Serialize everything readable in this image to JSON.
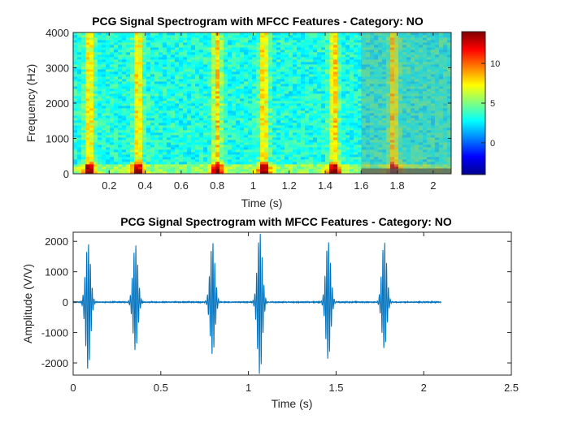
{
  "chart_data": [
    {
      "type": "heatmap",
      "title": "PCG Signal Spectrogram with MFCC Features - Category: NO",
      "xlabel": "Time (s)",
      "ylabel": "Frequency (Hz)",
      "xlim": [
        0,
        2.1
      ],
      "ylim": [
        0,
        4000
      ],
      "xticks": [
        0.2,
        0.4,
        0.6,
        0.8,
        1,
        1.2,
        1.4,
        1.6,
        1.8,
        2
      ],
      "xtick_labels": [
        "0.2",
        "0.4",
        "0.6",
        "0.8",
        "1",
        "1.2",
        "1.4",
        "1.6",
        "1.8",
        "2"
      ],
      "yticks": [
        0,
        1000,
        2000,
        3000,
        4000
      ],
      "ytick_labels": [
        "0",
        "1000",
        "2000",
        "3000",
        "4000"
      ],
      "colormap": "jet",
      "clim": [
        -4,
        14
      ],
      "colorbar_ticks": [
        0,
        5,
        10
      ],
      "colorbar_tick_labels": [
        "0",
        "5",
        "10"
      ],
      "beat_times": [
        0.09,
        0.36,
        0.8,
        1.06,
        1.45,
        1.78
      ],
      "overlay": {
        "x_range": [
          1.6,
          2.1
        ],
        "note": "semi-transparent gray box (MFCC overlay)"
      },
      "overlay_band": {
        "y_range": [
          0,
          150
        ]
      }
    },
    {
      "type": "line",
      "title": "PCG Signal Spectrogram with MFCC Features - Category: NO",
      "xlabel": "Time (s)",
      "ylabel": "Amplitude (V/V)",
      "xlim": [
        0,
        2.5
      ],
      "ylim": [
        -2400,
        2300
      ],
      "xticks": [
        0,
        0.5,
        1,
        1.5,
        2,
        2.5
      ],
      "xtick_labels": [
        "0",
        "0.5",
        "1",
        "1.5",
        "2",
        "2.5"
      ],
      "yticks": [
        -2000,
        -1000,
        0,
        1000,
        2000
      ],
      "ytick_labels": [
        "-2000",
        "-1000",
        "0",
        "1000",
        "2000"
      ],
      "series_color": "#0072BD",
      "signal_end": 2.1,
      "beats": [
        {
          "t": 0.085,
          "max": 1950,
          "min": -2250
        },
        {
          "t": 0.355,
          "max": 1900,
          "min": -1600
        },
        {
          "t": 0.795,
          "max": 2000,
          "min": -1750
        },
        {
          "t": 1.065,
          "max": 2300,
          "min": -2400
        },
        {
          "t": 1.455,
          "max": 2000,
          "min": -1900
        },
        {
          "t": 1.775,
          "max": 2000,
          "min": -1550
        }
      ]
    }
  ]
}
